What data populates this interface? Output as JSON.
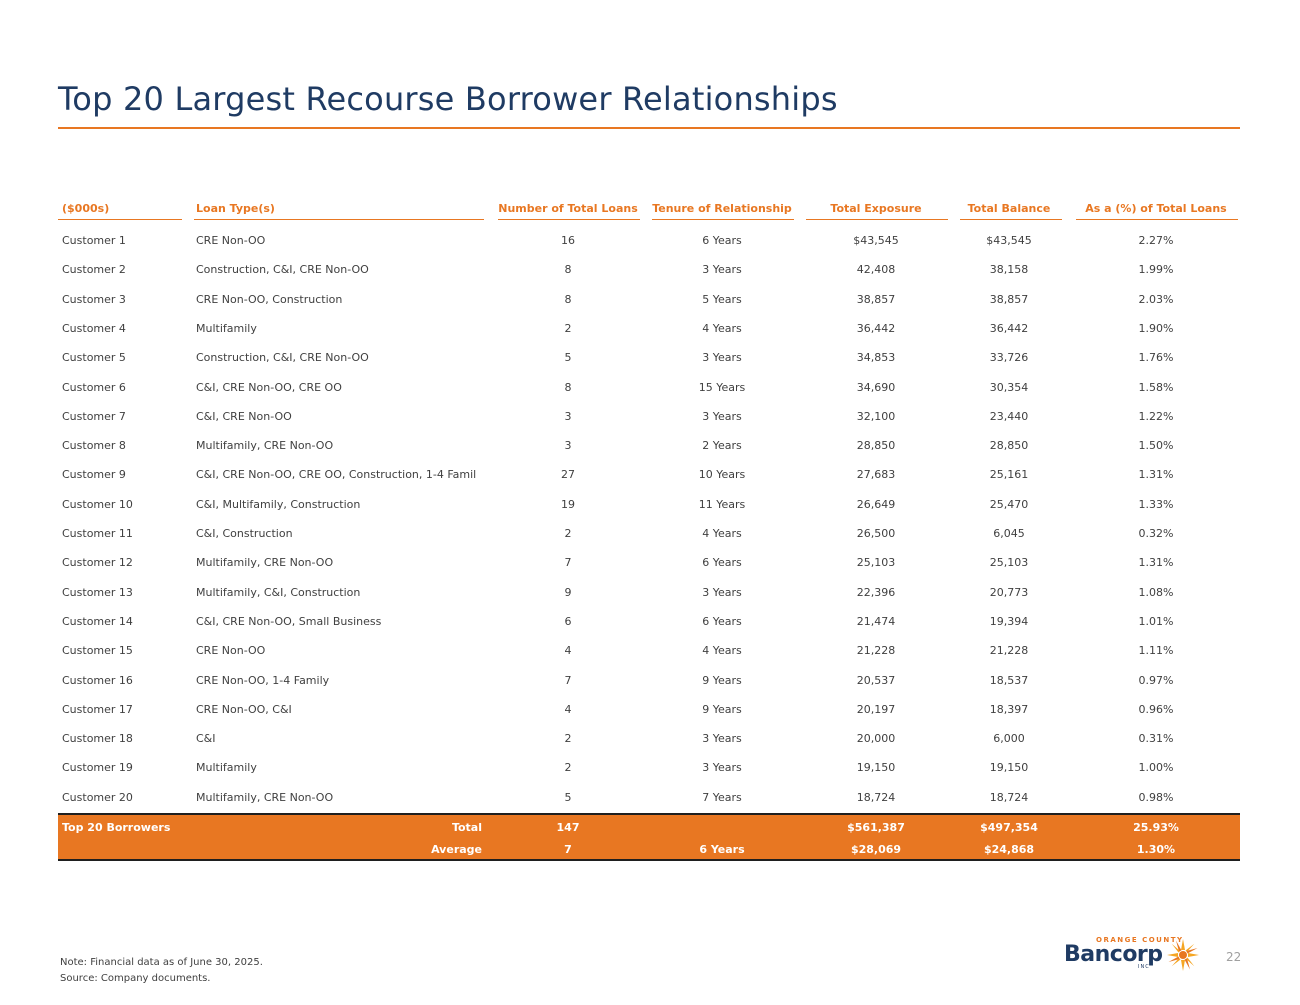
{
  "title": "Top 20 Largest Recourse Borrower Relationships",
  "colors": {
    "accent": "#e87722",
    "navy": "#1f3b63"
  },
  "table": {
    "headers": [
      "($000s)",
      "Loan Type(s)",
      "Number of Total Loans",
      "Tenure of Relationship",
      "Total Exposure",
      "Total Balance",
      "As a (%) of Total Loans"
    ],
    "rows": [
      [
        "Customer 1",
        "CRE Non-OO",
        "16",
        "6 Years",
        "$43,545",
        "$43,545",
        "2.27%"
      ],
      [
        "Customer 2",
        "Construction, C&I, CRE Non-OO",
        "8",
        "3 Years",
        "42,408",
        "38,158",
        "1.99%"
      ],
      [
        "Customer 3",
        "CRE Non-OO, Construction",
        "8",
        "5 Years",
        "38,857",
        "38,857",
        "2.03%"
      ],
      [
        "Customer 4",
        "Multifamily",
        "2",
        "4 Years",
        "36,442",
        "36,442",
        "1.90%"
      ],
      [
        "Customer 5",
        "Construction, C&I, CRE Non-OO",
        "5",
        "3 Years",
        "34,853",
        "33,726",
        "1.76%"
      ],
      [
        "Customer 6",
        "C&I, CRE Non-OO, CRE OO",
        "8",
        "15 Years",
        "34,690",
        "30,354",
        "1.58%"
      ],
      [
        "Customer 7",
        "C&I, CRE Non-OO",
        "3",
        "3 Years",
        "32,100",
        "23,440",
        "1.22%"
      ],
      [
        "Customer 8",
        "Multifamily, CRE Non-OO",
        "3",
        "2 Years",
        "28,850",
        "28,850",
        "1.50%"
      ],
      [
        "Customer 9",
        "C&I, CRE Non-OO, CRE OO, Construction, 1-4 Famil",
        "27",
        "10 Years",
        "27,683",
        "25,161",
        "1.31%"
      ],
      [
        "Customer 10",
        "C&I, Multifamily, Construction",
        "19",
        "11 Years",
        "26,649",
        "25,470",
        "1.33%"
      ],
      [
        "Customer 11",
        "C&I, Construction",
        "2",
        "4 Years",
        "26,500",
        "6,045",
        "0.32%"
      ],
      [
        "Customer 12",
        "Multifamily, CRE Non-OO",
        "7",
        "6 Years",
        "25,103",
        "25,103",
        "1.31%"
      ],
      [
        "Customer 13",
        "Multifamily, C&I, Construction",
        "9",
        "3 Years",
        "22,396",
        "20,773",
        "1.08%"
      ],
      [
        "Customer 14",
        "C&I, CRE Non-OO, Small Business",
        "6",
        "6 Years",
        "21,474",
        "19,394",
        "1.01%"
      ],
      [
        "Customer 15",
        "CRE Non-OO",
        "4",
        "4 Years",
        "21,228",
        "21,228",
        "1.11%"
      ],
      [
        "Customer 16",
        "CRE Non-OO, 1-4 Family",
        "7",
        "9 Years",
        "20,537",
        "18,537",
        "0.97%"
      ],
      [
        "Customer 17",
        "CRE Non-OO, C&I",
        "4",
        "9 Years",
        "20,197",
        "18,397",
        "0.96%"
      ],
      [
        "Customer 18",
        "C&I",
        "2",
        "3 Years",
        "20,000",
        "6,000",
        "0.31%"
      ],
      [
        "Customer 19",
        "Multifamily",
        "2",
        "3 Years",
        "19,150",
        "19,150",
        "1.00%"
      ],
      [
        "Customer 20",
        "Multifamily, CRE Non-OO",
        "5",
        "7 Years",
        "18,724",
        "18,724",
        "0.98%"
      ]
    ],
    "totals": {
      "group_label": "Top 20 Borrowers",
      "total": {
        "label": "Total",
        "loans": "147",
        "exposure": "$561,387",
        "balance": "$497,354",
        "pct": "25.93%"
      },
      "average": {
        "label": "Average",
        "loans": "7",
        "tenure": "6 Years",
        "exposure": "$28,069",
        "balance": "$24,868",
        "pct": "1.30%"
      }
    }
  },
  "footnotes": {
    "note": "Note: Financial data as of June 30, 2025.",
    "source": "Source: Company documents."
  },
  "logo": {
    "top_text": "ORANGE COUNTY",
    "main_text": "Bancorp",
    "inc_text": "INC"
  },
  "page_number": "22"
}
